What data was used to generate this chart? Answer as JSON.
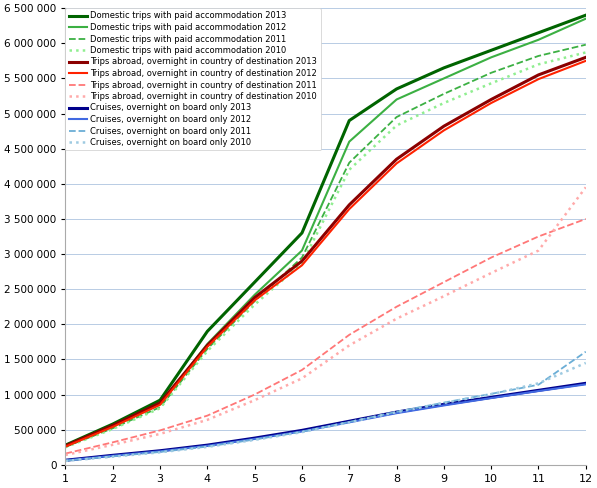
{
  "xlim": [
    1,
    12
  ],
  "ylim": [
    0,
    6500000
  ],
  "yticks": [
    0,
    500000,
    1000000,
    1500000,
    2000000,
    2500000,
    3000000,
    3500000,
    4000000,
    4500000,
    5000000,
    5500000,
    6000000,
    6500000
  ],
  "xticks": [
    1,
    2,
    3,
    4,
    5,
    6,
    7,
    8,
    9,
    10,
    11,
    12
  ],
  "series": [
    {
      "label": "Domestic trips with paid accommodation 2013",
      "color": "#006400",
      "linestyle": "solid",
      "linewidth": 2.2,
      "data": [
        280000,
        580000,
        920000,
        1900000,
        2600000,
        3300000,
        4900000,
        5350000,
        5650000,
        5900000,
        6150000,
        6400000
      ]
    },
    {
      "label": "Domestic trips with paid accommodation 2012",
      "color": "#3cb043",
      "linestyle": "solid",
      "linewidth": 1.5,
      "data": [
        265000,
        545000,
        860000,
        1720000,
        2420000,
        3050000,
        4600000,
        5200000,
        5500000,
        5800000,
        6050000,
        6350000
      ]
    },
    {
      "label": "Domestic trips with paid accommodation 2011",
      "color": "#3cb043",
      "linestyle": "dashed",
      "linewidth": 1.3,
      "data": [
        255000,
        520000,
        820000,
        1650000,
        2330000,
        2950000,
        4300000,
        4950000,
        5280000,
        5580000,
        5820000,
        5980000
      ]
    },
    {
      "label": "Domestic trips with paid accommodation 2010",
      "color": "#90ee90",
      "linestyle": "dotted",
      "linewidth": 1.8,
      "data": [
        250000,
        510000,
        805000,
        1620000,
        2280000,
        2870000,
        4200000,
        4830000,
        5150000,
        5430000,
        5700000,
        5870000
      ]
    },
    {
      "label": "Trips abroad, overnight in country of destination 2013",
      "color": "#8B0000",
      "linestyle": "solid",
      "linewidth": 2.2,
      "data": [
        270000,
        560000,
        880000,
        1700000,
        2380000,
        2900000,
        3700000,
        4350000,
        4820000,
        5200000,
        5550000,
        5800000
      ]
    },
    {
      "label": "Trips abroad, overnight in country of destination 2012",
      "color": "#ff2200",
      "linestyle": "solid",
      "linewidth": 1.5,
      "data": [
        260000,
        540000,
        855000,
        1680000,
        2340000,
        2840000,
        3640000,
        4290000,
        4760000,
        5150000,
        5490000,
        5750000
      ]
    },
    {
      "label": "Trips abroad, overnight in country of destination 2011",
      "color": "#ff7777",
      "linestyle": "dashed",
      "linewidth": 1.3,
      "data": [
        160000,
        320000,
        490000,
        700000,
        1000000,
        1350000,
        1850000,
        2250000,
        2600000,
        2950000,
        3250000,
        3500000
      ]
    },
    {
      "label": "Trips abroad, overnight in country of destination 2010",
      "color": "#ffaaaa",
      "linestyle": "dotted",
      "linewidth": 1.8,
      "data": [
        140000,
        285000,
        440000,
        640000,
        920000,
        1230000,
        1700000,
        2080000,
        2400000,
        2730000,
        3050000,
        3950000
      ]
    },
    {
      "label": "Cruises, overnight on board only 2013",
      "color": "#00008B",
      "linestyle": "solid",
      "linewidth": 2.2,
      "data": [
        65000,
        135000,
        200000,
        280000,
        380000,
        490000,
        620000,
        750000,
        860000,
        960000,
        1060000,
        1160000
      ]
    },
    {
      "label": "Cruises, overnight on board only 2012",
      "color": "#4169e1",
      "linestyle": "solid",
      "linewidth": 1.5,
      "data": [
        62000,
        128000,
        192000,
        270000,
        368000,
        475000,
        605000,
        735000,
        845000,
        950000,
        1050000,
        1145000
      ]
    },
    {
      "label": "Cruises, overnight on board only 2011",
      "color": "#6baed6",
      "linestyle": "dashed",
      "linewidth": 1.3,
      "data": [
        58000,
        120000,
        183000,
        260000,
        360000,
        470000,
        610000,
        755000,
        885000,
        1010000,
        1140000,
        1610000
      ]
    },
    {
      "label": "Cruises, overnight on board only 2010",
      "color": "#9ecae1",
      "linestyle": "dotted",
      "linewidth": 1.8,
      "data": [
        55000,
        115000,
        178000,
        255000,
        355000,
        465000,
        605000,
        750000,
        880000,
        1005000,
        1160000,
        1450000
      ]
    }
  ]
}
